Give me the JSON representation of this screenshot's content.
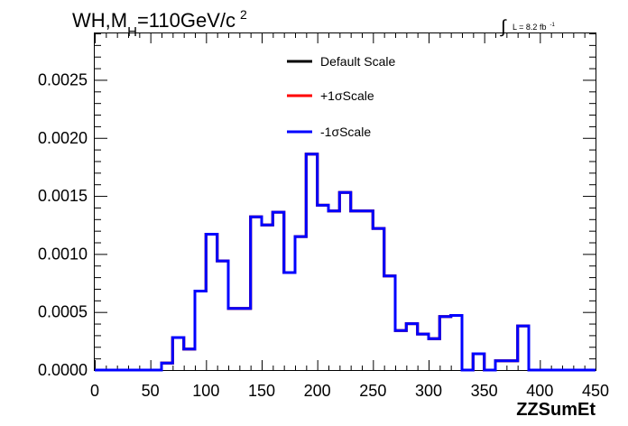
{
  "chart_data": {
    "type": "line",
    "title": {
      "prefix": "WH,M",
      "subscript": "H",
      "middle": "=110GeV/c",
      "superscript": "2"
    },
    "luminosity": {
      "integral": "∫",
      "text": "L = 8.2 fb",
      "exponent": "-1"
    },
    "xlabel": "ZZSumEt",
    "ylabel": "",
    "xlim": [
      0,
      450
    ],
    "ylim": [
      0,
      0.0029
    ],
    "x_ticks": [
      "0",
      "50",
      "100",
      "150",
      "200",
      "250",
      "300",
      "350",
      "400",
      "450"
    ],
    "y_ticks": [
      "0.0000",
      "0.0005",
      "0.0010",
      "0.0015",
      "0.0020",
      "0.0025"
    ],
    "bin_edges": [
      0,
      10,
      20,
      30,
      40,
      50,
      60,
      70,
      80,
      90,
      100,
      110,
      120,
      130,
      140,
      150,
      160,
      170,
      180,
      190,
      200,
      210,
      220,
      230,
      240,
      250,
      260,
      270,
      280,
      290,
      300,
      310,
      320,
      330,
      340,
      350,
      360,
      370,
      380,
      390,
      400,
      410,
      420,
      430,
      440,
      450
    ],
    "series": [
      {
        "name": "Default Scale",
        "color": "#000000",
        "values": [
          0,
          0,
          0,
          0,
          0,
          0,
          6e-05,
          0.00028,
          0.00018,
          0.00068,
          0.00117,
          0.00094,
          0.00053,
          0.00053,
          0.00132,
          0.00125,
          0.00136,
          0.00084,
          0.00115,
          0.00186,
          0.00142,
          0.00137,
          0.00153,
          0.00137,
          0.00137,
          0.00122,
          0.00081,
          0.00034,
          0.0004,
          0.00031,
          0.00027,
          0.00046,
          0.00047,
          0,
          0.00014,
          0,
          8e-05,
          8e-05,
          0.00038,
          0,
          0,
          0,
          0,
          0,
          0
        ]
      },
      {
        "name": "+1σScale",
        "color": "#ff0000",
        "values": [
          0,
          0,
          0,
          0,
          0,
          0,
          6e-05,
          0.00028,
          0.00018,
          0.00068,
          0.00117,
          0.00094,
          0.00053,
          0.00053,
          0.00132,
          0.00125,
          0.00136,
          0.00084,
          0.00115,
          0.00186,
          0.00142,
          0.00137,
          0.00153,
          0.00137,
          0.00137,
          0.00122,
          0.00081,
          0.00034,
          0.0004,
          0.00031,
          0.00027,
          0.00046,
          0.00047,
          0,
          0.00014,
          0,
          8e-05,
          8e-05,
          0.00038,
          0,
          0,
          0,
          0,
          0,
          0
        ]
      },
      {
        "name": "-1σScale",
        "color": "#0000ff",
        "values": [
          0,
          0,
          0,
          0,
          0,
          0,
          6e-05,
          0.00028,
          0.00018,
          0.00068,
          0.00117,
          0.00094,
          0.00053,
          0.00053,
          0.00132,
          0.00125,
          0.00136,
          0.00084,
          0.00115,
          0.00186,
          0.00142,
          0.00137,
          0.00153,
          0.00137,
          0.00137,
          0.00122,
          0.00081,
          0.00034,
          0.0004,
          0.00031,
          0.00027,
          0.00046,
          0.00047,
          0,
          0.00014,
          0,
          8e-05,
          8e-05,
          0.00038,
          0,
          0,
          0,
          0,
          0,
          0
        ]
      }
    ],
    "legend_placement": "top-center",
    "grid": false
  }
}
